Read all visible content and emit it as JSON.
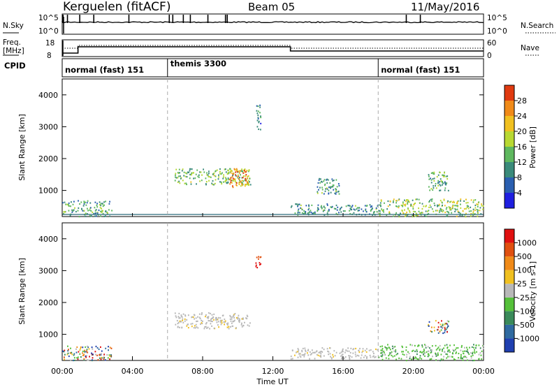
{
  "header": {
    "title": "Kerguelen (fitACF)",
    "beam": "Beam 05",
    "date": "11/May/2016"
  },
  "panels": {
    "nsky_label": "N.Sky",
    "nsearch_label": "N.Search",
    "freq_label": "Freq.",
    "freq_unit": "[MHz]",
    "nave_label": "Nave",
    "cpid_label": "CPID",
    "nsky_ticks": [
      "10^5",
      "10^0"
    ],
    "nsearch_ticks": [
      "10^5",
      "10^0"
    ],
    "freq_ticks": [
      "18",
      "8"
    ],
    "nave_ticks": [
      "60",
      "0"
    ]
  },
  "cpid_segments": [
    {
      "label": "normal (fast) 151",
      "start_hour": 0
    },
    {
      "label": "themis 3300",
      "start_hour": 6
    },
    {
      "label": "normal (fast) 151",
      "start_hour": 18
    }
  ],
  "chart_data": [
    {
      "type": "heatmap",
      "title": "",
      "ylabel": "Slant Range [km]",
      "xlabel": "",
      "ylim": [
        180,
        4500
      ],
      "xlim": [
        0,
        24
      ],
      "yticks": [
        "1000",
        "2000",
        "3000",
        "4000"
      ],
      "colorbar": {
        "label": "Power [dB]",
        "ticks": [
          "4",
          "8",
          "12",
          "16",
          "20",
          "24",
          "28"
        ],
        "colors": [
          "#1f1fe0",
          "#2a5fb0",
          "#3a8a7a",
          "#5fb85f",
          "#b8d832",
          "#f0c020",
          "#f08a18",
          "#e03a10"
        ]
      },
      "regions": [
        {
          "t0": 0.0,
          "t1": 2.8,
          "r0": 200,
          "r1": 700,
          "level": 0.35
        },
        {
          "t0": 6.4,
          "t1": 10.7,
          "r0": 1200,
          "r1": 1700,
          "level": 0.45
        },
        {
          "t0": 9.5,
          "t1": 10.6,
          "r0": 1100,
          "r1": 1700,
          "level": 0.8
        },
        {
          "t0": 11.0,
          "t1": 11.3,
          "r0": 2900,
          "r1": 3700,
          "level": 0.25
        },
        {
          "t0": 13.0,
          "t1": 18.0,
          "r0": 250,
          "r1": 600,
          "level": 0.3
        },
        {
          "t0": 14.5,
          "t1": 15.8,
          "r0": 900,
          "r1": 1400,
          "level": 0.3
        },
        {
          "t0": 18.0,
          "t1": 24.0,
          "r0": 200,
          "r1": 750,
          "level": 0.5
        },
        {
          "t0": 20.8,
          "t1": 22.0,
          "r0": 1000,
          "r1": 1600,
          "level": 0.4
        }
      ]
    },
    {
      "type": "heatmap",
      "title": "",
      "ylabel": "Slant Range [km]",
      "xlabel": "Time UT",
      "ylim": [
        180,
        4500
      ],
      "xlim": [
        0,
        24
      ],
      "yticks": [
        "1000",
        "2000",
        "3000",
        "4000"
      ],
      "xticks": [
        "00:00",
        "04:00",
        "08:00",
        "12:00",
        "16:00",
        "20:00",
        "00:00"
      ],
      "colorbar": {
        "label": "Velocity [m s-1]",
        "ticks": [
          "1000",
          "500",
          "100",
          "25",
          "-25",
          "-100",
          "-500",
          "-1000"
        ],
        "colors": [
          "#1f3fb0",
          "#2f6aa0",
          "#3a8a5a",
          "#55c03a",
          "#b8b8b8",
          "#f0c020",
          "#f08a18",
          "#e05010",
          "#e01010"
        ]
      },
      "regions": [
        {
          "t0": 0.0,
          "t1": 2.8,
          "r0": 200,
          "r1": 650,
          "level": "mixed"
        },
        {
          "t0": 6.4,
          "t1": 10.7,
          "r0": 1200,
          "r1": 1700,
          "level": "ground"
        },
        {
          "t0": 11.0,
          "t1": 11.3,
          "r0": 3100,
          "r1": 3500,
          "level": "away"
        },
        {
          "t0": 13.0,
          "t1": 18.0,
          "r0": 250,
          "r1": 600,
          "level": "ground"
        },
        {
          "t0": 18.0,
          "t1": 24.0,
          "r0": 200,
          "r1": 700,
          "level": "toward"
        },
        {
          "t0": 20.8,
          "t1": 22.0,
          "r0": 1050,
          "r1": 1450,
          "level": "mixed"
        }
      ]
    }
  ]
}
